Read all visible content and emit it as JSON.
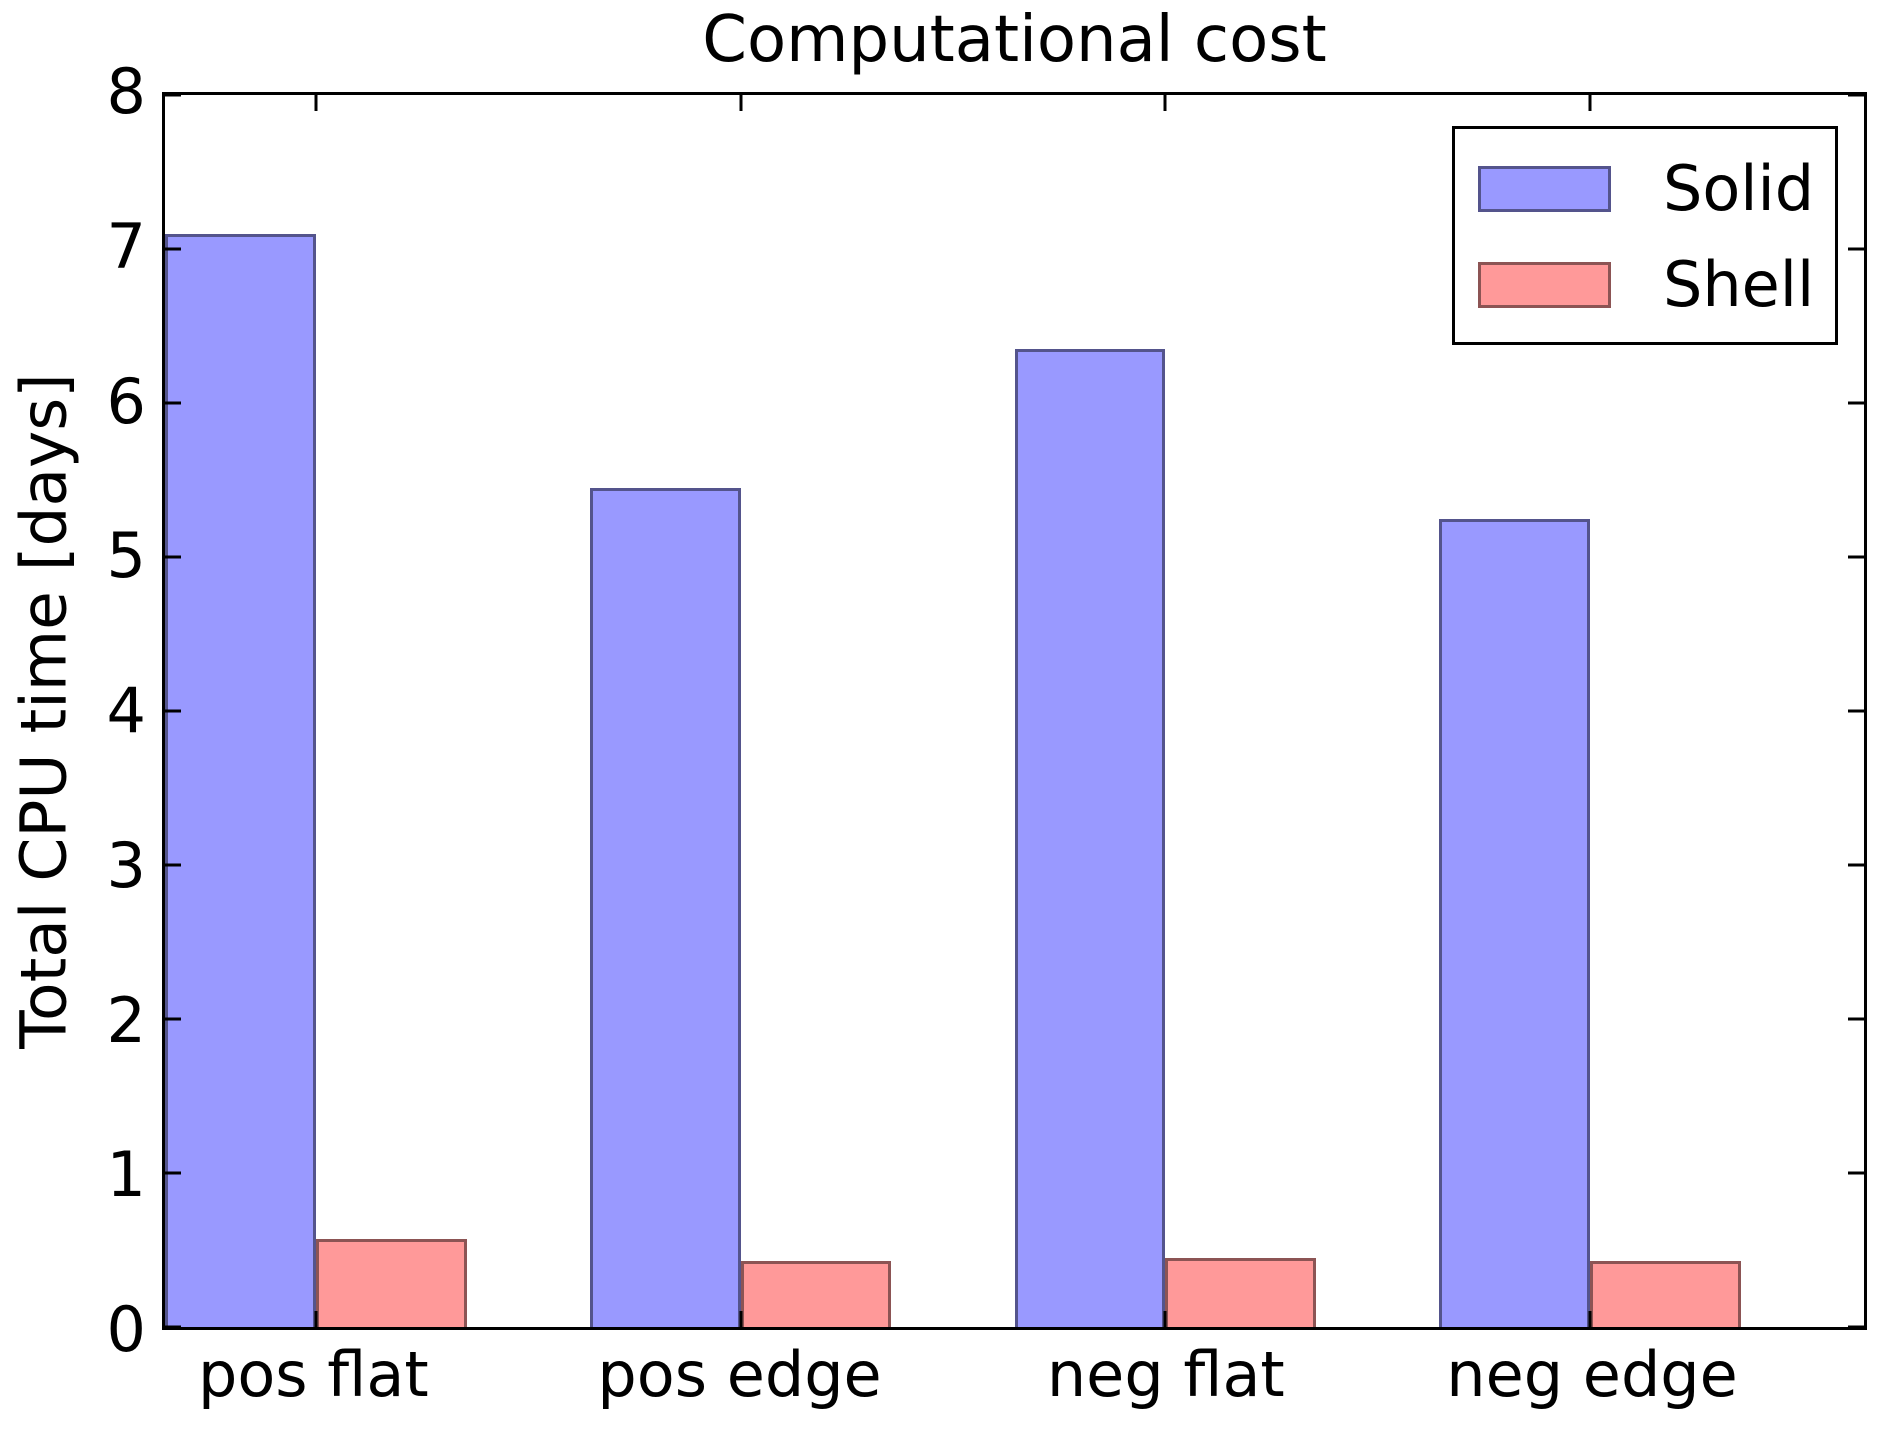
{
  "figure": {
    "background": "#ffffff",
    "axis_color": "#000000",
    "text_color": "#000000"
  },
  "chart_data": {
    "type": "bar",
    "title": "Computational cost",
    "xlabel": "",
    "ylabel": "Total CPU time [days]",
    "categories": [
      "pos flat",
      "pos edge",
      "neg flat",
      "neg edge"
    ],
    "series": [
      {
        "name": "Solid",
        "values": [
          7.1,
          5.45,
          6.35,
          5.25
        ],
        "fill": "rgba(0,0,255,0.4)",
        "edge": "rgba(0,0,0,0.45)"
      },
      {
        "name": "Shell",
        "values": [
          0.57,
          0.43,
          0.45,
          0.43
        ],
        "fill": "rgba(255,0,0,0.4)",
        "edge": "rgba(0,0,0,0.45)"
      }
    ],
    "ylim": [
      0,
      8
    ],
    "yticks": [
      0,
      1,
      2,
      3,
      4,
      5,
      6,
      7,
      8
    ],
    "xlim": [
      0,
      4
    ],
    "x": [
      0,
      1,
      2,
      3
    ],
    "bar_width": 0.355,
    "grid": false,
    "legend_position": "upper right",
    "tick_direction": "in",
    "ticks_on_all_spines": true
  }
}
